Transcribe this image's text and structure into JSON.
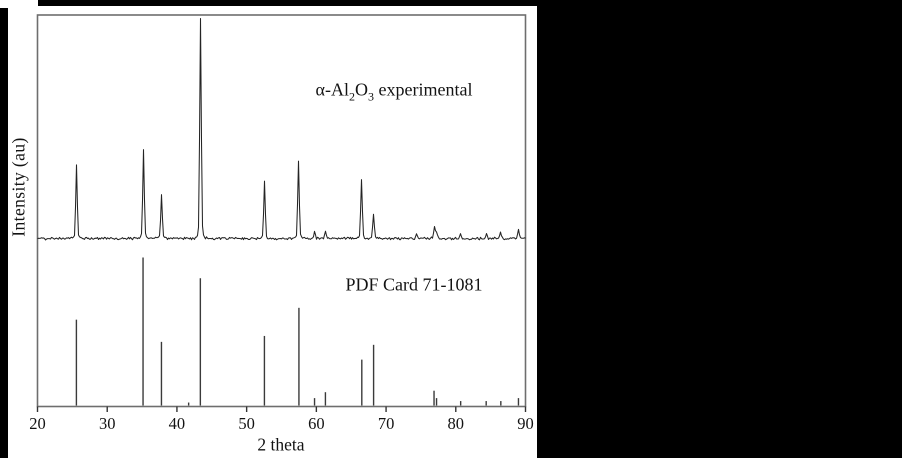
{
  "figure": {
    "annotations": {
      "experimental": {
        "prefix": "α-Al",
        "sub1": "2",
        "mid": "O",
        "sub2": "3",
        "suffix": " experimental"
      }
    }
  },
  "chart_data": {
    "type": "line",
    "title": "",
    "xlabel": "2 theta",
    "ylabel": "Intensity (au)",
    "xlim": [
      20,
      90
    ],
    "x_ticks": [
      20,
      30,
      40,
      50,
      60,
      70,
      80,
      90
    ],
    "grid": false,
    "legend_position": "none",
    "series": [
      {
        "name": "α-Al2O3 experimental",
        "style": "trace",
        "peaks": [
          [
            25.58,
            32
          ],
          [
            35.14,
            39
          ],
          [
            37.78,
            19
          ],
          [
            43.36,
            100
          ],
          [
            52.55,
            25
          ],
          [
            57.5,
            34
          ],
          [
            59.74,
            3
          ],
          [
            61.3,
            3
          ],
          [
            66.52,
            26
          ],
          [
            68.21,
            11
          ],
          [
            74.3,
            2
          ],
          [
            76.88,
            5
          ],
          [
            77.24,
            3
          ],
          [
            80.7,
            2
          ],
          [
            84.4,
            2
          ],
          [
            86.4,
            3
          ],
          [
            88.99,
            4
          ]
        ]
      },
      {
        "name": "PDF Card 71-1081",
        "style": "stick",
        "peaks": [
          [
            25.58,
            58
          ],
          [
            35.14,
            100
          ],
          [
            37.78,
            43
          ],
          [
            41.68,
            2
          ],
          [
            43.36,
            86
          ],
          [
            52.55,
            47
          ],
          [
            57.5,
            66
          ],
          [
            59.74,
            5
          ],
          [
            61.3,
            9
          ],
          [
            66.52,
            31
          ],
          [
            68.21,
            41
          ],
          [
            76.88,
            10
          ],
          [
            77.24,
            5
          ],
          [
            80.7,
            3
          ],
          [
            84.36,
            3
          ],
          [
            86.46,
            3
          ],
          [
            88.99,
            5
          ]
        ]
      }
    ],
    "colors": {
      "trace": "#242424",
      "stick": "#3a3a3a",
      "frame": "#6e6e6e",
      "text": "#131313"
    }
  }
}
